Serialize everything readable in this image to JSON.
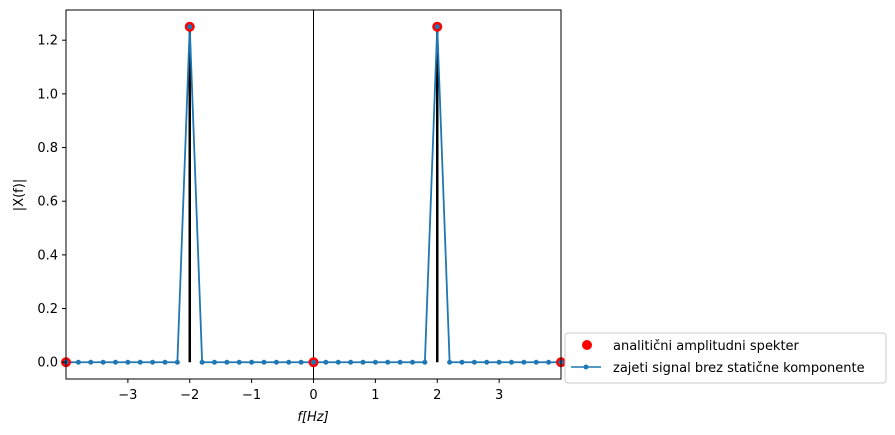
{
  "chart_data": {
    "type": "line",
    "xlabel": "f[Hz]",
    "ylabel": "|X(f)|",
    "xlim": [
      -4.0,
      4.0
    ],
    "ylim": [
      -0.0625,
      1.3125
    ],
    "xticks": [
      -3,
      -2,
      -1,
      0,
      1,
      2,
      3
    ],
    "xtick_labels": [
      "−3",
      "−2",
      "−1",
      "0",
      "1",
      "2",
      "3"
    ],
    "yticks": [
      0.0,
      0.2,
      0.4,
      0.6,
      0.8,
      1.0,
      1.2
    ],
    "ytick_labels": [
      "0.0",
      "0.2",
      "0.4",
      "0.6",
      "0.8",
      "1.0",
      "1.2"
    ],
    "vertical_line_x": 0,
    "legend_placement": "lower-right outside",
    "series": [
      {
        "name": "analitični amplitudni spekter",
        "kind": "scatter",
        "color": "#ff0000",
        "x": [
          -4,
          -2,
          0,
          2,
          4
        ],
        "y": [
          0,
          1.25,
          0,
          1.25,
          0
        ]
      },
      {
        "name": "zajeti signal brez statične komponente",
        "kind": "line-marker",
        "color": "#1f77b4",
        "x": [
          -4.0,
          -3.8,
          -3.6,
          -3.4,
          -3.2,
          -3.0,
          -2.8,
          -2.6,
          -2.4,
          -2.2,
          -2.0,
          -1.8,
          -1.6,
          -1.4,
          -1.2,
          -1.0,
          -0.8,
          -0.6,
          -0.4,
          -0.2,
          0.0,
          0.2,
          0.4,
          0.6,
          0.8,
          1.0,
          1.2,
          1.4,
          1.6,
          1.8,
          2.0,
          2.2,
          2.4,
          2.6,
          2.8,
          3.0,
          3.2,
          3.4,
          3.6,
          3.8,
          4.0
        ],
        "y": [
          0,
          0,
          0,
          0,
          0,
          0,
          0,
          0,
          0,
          0,
          1.25,
          0,
          0,
          0,
          0,
          0,
          0,
          0,
          0,
          0,
          0,
          0,
          0,
          0,
          0,
          0,
          0,
          0,
          0,
          0,
          1.25,
          0,
          0,
          0,
          0,
          0,
          0,
          0,
          0,
          0,
          0
        ]
      }
    ],
    "stems": {
      "color": "#000000",
      "x": [
        -4,
        -2,
        0,
        2,
        4
      ],
      "y": [
        0,
        1.25,
        0,
        1.25,
        0
      ]
    }
  }
}
